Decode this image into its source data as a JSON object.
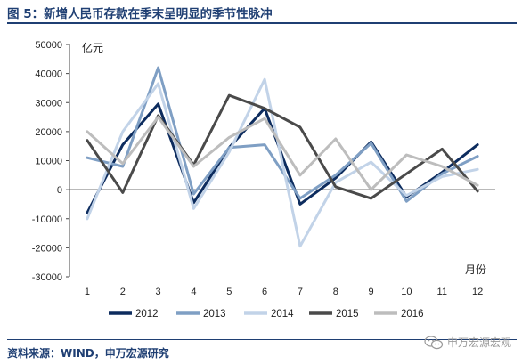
{
  "figure": {
    "title": "图 5：新增人民币存款在季末呈明显的季节性脉冲",
    "source": "资料来源：WIND，申万宏源研究",
    "watermark": "申万宏源宏观"
  },
  "chart_data": {
    "type": "line",
    "ylabel": "亿元",
    "xlabel": "月份",
    "ylim": [
      -30000,
      50000
    ],
    "yticks": [
      -30000,
      -20000,
      -10000,
      0,
      10000,
      20000,
      30000,
      40000,
      50000
    ],
    "categories": [
      "1",
      "2",
      "3",
      "4",
      "5",
      "6",
      "7",
      "8",
      "9",
      "10",
      "11",
      "12"
    ],
    "grid": false,
    "legend_position": "bottom",
    "series": [
      {
        "name": "2012",
        "color": "#0d2c5e",
        "values": [
          -8000,
          15500,
          29500,
          -4500,
          14500,
          28000,
          -5000,
          4000,
          16500,
          -2500,
          6000,
          15500
        ]
      },
      {
        "name": "2013",
        "color": "#7f9fc4",
        "values": [
          11000,
          8000,
          42000,
          -1500,
          14500,
          15500,
          -3000,
          5000,
          16000,
          -4000,
          5500,
          11500
        ]
      },
      {
        "name": "2014",
        "color": "#c2d3e8",
        "values": [
          -10000,
          20000,
          36500,
          -6500,
          13000,
          38000,
          -19500,
          2500,
          9500,
          -2000,
          4500,
          7000
        ]
      },
      {
        "name": "2015",
        "color": "#4a4a4a",
        "values": [
          17000,
          -1000,
          25500,
          8500,
          32500,
          28000,
          21500,
          1000,
          -3000,
          5500,
          14000,
          -500
        ]
      },
      {
        "name": "2016",
        "color": "#bdbdbd",
        "values": [
          20000,
          9000,
          25000,
          8000,
          18000,
          24500,
          5000,
          17500,
          0,
          12000,
          8000,
          1500
        ]
      }
    ]
  }
}
